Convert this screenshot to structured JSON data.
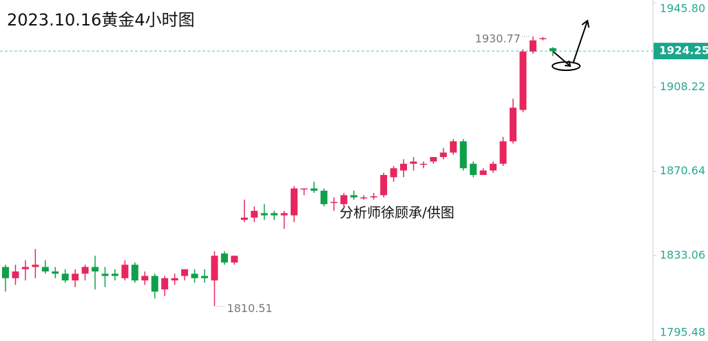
{
  "chart_data": {
    "type": "candlestick",
    "title": "2023.10.16黄金4小时图",
    "watermark": "分析师徐顾承/供图",
    "open": [
      1828,
      1823,
      1827,
      1828,
      1828,
      1826,
      1825,
      1822,
      1825,
      1828,
      1825,
      1825,
      1823,
      1829,
      1822,
      1824,
      1818,
      1822,
      1824,
      1825,
      1824,
      1822,
      1834,
      1830,
      1849,
      1850,
      1852,
      1852,
      1851,
      1851,
      1863,
      1863,
      1862,
      1857,
      1856,
      1860,
      1859,
      1859,
      1860,
      1868,
      1871,
      1874,
      1874,
      1875,
      1877,
      1879,
      1884,
      1874,
      1869,
      1871,
      1874,
      1884,
      1898,
      1924,
      1930,
      1925.5
    ],
    "close": [
      1823,
      1826,
      1828,
      1829,
      1826,
      1825,
      1822,
      1825,
      1828,
      1826,
      1824,
      1824,
      1829,
      1822,
      1824,
      1817,
      1823,
      1823,
      1827,
      1823,
      1823,
      1833,
      1830,
      1833,
      1850,
      1853,
      1851,
      1851,
      1852,
      1863,
      1863,
      1862,
      1856,
      1857,
      1860,
      1859,
      1859,
      1859.5,
      1869,
      1872,
      1874,
      1875,
      1874,
      1877,
      1879,
      1884,
      1872,
      1869,
      1871,
      1874,
      1884,
      1899,
      1924,
      1929,
      1930,
      1924.25
    ],
    "high": [
      1829,
      1829,
      1831,
      1836,
      1831,
      1828,
      1827,
      1827,
      1829,
      1833,
      1828,
      1827,
      1831,
      1830,
      1826,
      1825,
      1824,
      1825,
      1827,
      1827,
      1827,
      1835,
      1835,
      1833,
      1858,
      1855,
      1856,
      1853,
      1853,
      1864,
      1863,
      1866,
      1863,
      1859,
      1861,
      1862,
      1860,
      1861,
      1870,
      1873,
      1876,
      1877,
      1875,
      1877,
      1881,
      1885,
      1885,
      1875,
      1872,
      1875,
      1886,
      1903,
      1925,
      1930.77,
      1930.5,
      1926
    ],
    "low": [
      1817,
      1820,
      1822,
      1823,
      1825,
      1823,
      1821,
      1819,
      1822,
      1818,
      1819,
      1822,
      1822,
      1821,
      1820,
      1814,
      1815,
      1820,
      1822,
      1821,
      1821,
      1810.51,
      1829,
      1829,
      1848,
      1848,
      1849,
      1849,
      1845,
      1848,
      1860,
      1861,
      1855,
      1853,
      1854,
      1858,
      1858,
      1858,
      1859,
      1866,
      1868,
      1871,
      1872,
      1874,
      1876,
      1878,
      1871,
      1868,
      1869,
      1870,
      1873,
      1883,
      1897,
      1923,
      1929,
      1922
    ],
    "up_color": "#e8265e",
    "down_color": "#0ea04a",
    "last_color": "#1aa68c",
    "high_label": 1930.77,
    "low_label": 1810.51,
    "last": 1924.25,
    "ylim": [
      1795,
      1947
    ],
    "yticks": [
      {
        "value": 1945.8,
        "label": "1945.80"
      },
      1908.22,
      1870.64,
      1833.06,
      1795.48
    ]
  }
}
